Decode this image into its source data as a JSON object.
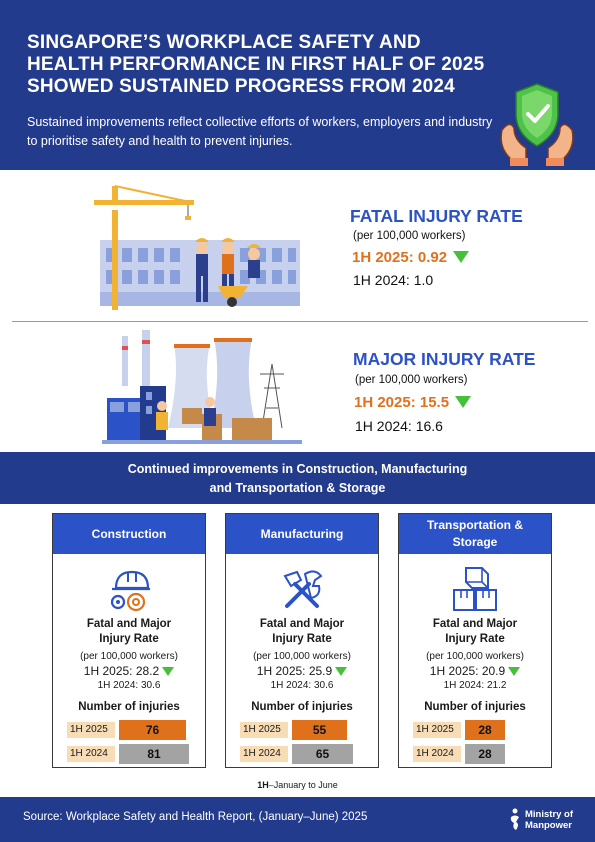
{
  "header": {
    "title_lines": [
      "SINGAPORE’S WORKPLACE SAFETY AND",
      "HEALTH PERFORMANCE IN FIRST HALF OF 2025",
      "SHOWED SUSTAINED PROGRESS FROM 2024"
    ],
    "subtitle": "Sustained improvements reflect collective efforts of workers, employers and industry to prioritise safety and health to prevent injuries."
  },
  "fatal": {
    "title": "FATAL INJURY RATE",
    "per": "(per 100,000 workers)",
    "rate_2025": "1H 2025: 0.92",
    "rate_2024": "1H 2024: 1.0"
  },
  "major": {
    "title": "MAJOR INJURY RATE",
    "per": "(per 100,000 workers)",
    "rate_2025": "1H 2025: 15.5",
    "rate_2024": "1H 2024: 16.6"
  },
  "sectors_heading": {
    "line1": "Continued improvements in Construction, Manufacturing",
    "line2": "and Transportation & Storage"
  },
  "sectors": [
    {
      "name": "Construction",
      "metric_line1": "Fatal and Major",
      "metric_line2": "Injury Rate",
      "per": "(per 100,000 workers)",
      "rate_2025": "1H 2025: 28.2",
      "rate_2024": "1H 2024: 30.6",
      "injuries_label": "Number of injuries",
      "label_2025": "1H 2025",
      "label_2024": "1H 2024",
      "injuries_2025": 76,
      "injuries_2024": 81
    },
    {
      "name": "Manufacturing",
      "metric_line1": "Fatal and Major",
      "metric_line2": "Injury Rate",
      "per": "(per 100,000 workers)",
      "rate_2025": "1H 2025: 25.9",
      "rate_2024": "1H 2024: 30.6",
      "injuries_label": "Number of injuries",
      "label_2025": "1H 2025",
      "label_2024": "1H 2024",
      "injuries_2025": 55,
      "injuries_2024": 65
    },
    {
      "name": "Transportation & Storage",
      "metric_line1": "Fatal and Major",
      "metric_line2": "Injury Rate",
      "per": "(per 100,000 workers)",
      "rate_2025": "1H 2025: 20.9",
      "rate_2024": "1H 2024: 21.2",
      "injuries_label": "Number of injuries",
      "label_2025": "1H 2025",
      "label_2024": "1H 2024",
      "injuries_2025": 28,
      "injuries_2024": 28
    }
  ],
  "footnote": {
    "bold": "1H",
    "text": "–January to June"
  },
  "footer": {
    "source": "Source: Workplace Safety and Health Report, (January–June) 2025",
    "logo_line1": "Ministry of",
    "logo_line2": "Manpower"
  },
  "colors": {
    "navy": "#233b8c",
    "blue": "#2c52c8",
    "orange": "#e0711c",
    "green": "#44c03a",
    "grey_bar": "#a3a3a3",
    "label_bg": "#f7dcb5"
  }
}
